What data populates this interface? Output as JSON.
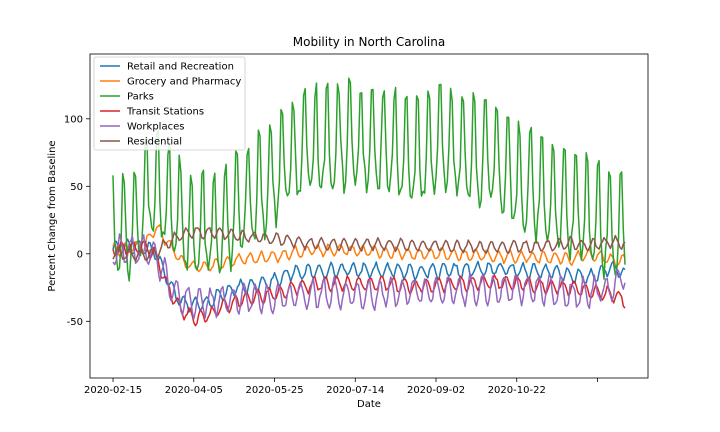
{
  "chart_data": {
    "type": "line",
    "title": "Mobility in North Carolina",
    "xlabel": "Date",
    "ylabel": "Percent Change from Baseline",
    "x_start": "2020-02-15",
    "x_end": "2020-12-28",
    "x_ticks": [
      "2020-02-15",
      "2020-04-05",
      "2020-05-25",
      "2020-07-14",
      "2020-09-02",
      "2020-10-22",
      ""
    ],
    "x_tick_dates": [
      "2020-02-15",
      "2020-04-05",
      "2020-05-25",
      "2020-07-14",
      "2020-09-02",
      "2020-10-22",
      "2020-12-11"
    ],
    "y_ticks": [
      -50,
      0,
      50,
      100
    ],
    "ylim": [
      -92,
      148
    ],
    "grid": false,
    "legend_position": "top-left",
    "series": [
      {
        "name": "Retail and Recreation",
        "color": "#1f77b4",
        "anchors": [
          [
            "2020-02-15",
            4
          ],
          [
            "2020-02-25",
            6
          ],
          [
            "2020-03-05",
            5
          ],
          [
            "2020-03-12",
            2
          ],
          [
            "2020-03-20",
            -20
          ],
          [
            "2020-03-28",
            -35
          ],
          [
            "2020-04-05",
            -38
          ],
          [
            "2020-04-13",
            -36
          ],
          [
            "2020-04-22",
            -30
          ],
          [
            "2020-05-01",
            -26
          ],
          [
            "2020-05-15",
            -22
          ],
          [
            "2020-05-25",
            -20
          ],
          [
            "2020-06-05",
            -14
          ],
          [
            "2020-06-20",
            -13
          ],
          [
            "2020-07-05",
            -12
          ],
          [
            "2020-07-14",
            -12
          ],
          [
            "2020-08-01",
            -12
          ],
          [
            "2020-08-20",
            -13
          ],
          [
            "2020-09-02",
            -13
          ],
          [
            "2020-09-20",
            -12
          ],
          [
            "2020-10-10",
            -11
          ],
          [
            "2020-10-22",
            -12
          ],
          [
            "2020-11-10",
            -13
          ],
          [
            "2020-11-25",
            -16
          ],
          [
            "2020-12-05",
            -18
          ],
          [
            "2020-12-20",
            -10
          ],
          [
            "2020-12-28",
            -15
          ]
        ],
        "amplitude": 5
      },
      {
        "name": "Grocery and Pharmacy",
        "color": "#ff7f0e",
        "anchors": [
          [
            "2020-02-15",
            3
          ],
          [
            "2020-03-05",
            5
          ],
          [
            "2020-03-13",
            20
          ],
          [
            "2020-03-20",
            8
          ],
          [
            "2020-03-28",
            -5
          ],
          [
            "2020-04-05",
            -10
          ],
          [
            "2020-04-20",
            -8
          ],
          [
            "2020-05-05",
            -4
          ],
          [
            "2020-05-25",
            -2
          ],
          [
            "2020-06-10",
            2
          ],
          [
            "2020-07-01",
            3
          ],
          [
            "2020-07-14",
            3
          ],
          [
            "2020-08-01",
            1
          ],
          [
            "2020-08-20",
            0
          ],
          [
            "2020-09-02",
            0
          ],
          [
            "2020-09-20",
            -1
          ],
          [
            "2020-10-10",
            -2
          ],
          [
            "2020-10-22",
            -2
          ],
          [
            "2020-11-15",
            -3
          ],
          [
            "2020-11-25",
            -4
          ],
          [
            "2020-12-05",
            0
          ],
          [
            "2020-12-20",
            -5
          ],
          [
            "2020-12-28",
            -5
          ]
        ],
        "amplitude": 4
      },
      {
        "name": "Parks",
        "color": "#2ca02c",
        "anchors": [
          [
            "2020-02-15",
            10
          ],
          [
            "2020-02-22",
            5
          ],
          [
            "2020-03-01",
            15
          ],
          [
            "2020-03-10",
            40
          ],
          [
            "2020-03-20",
            30
          ],
          [
            "2020-03-28",
            15
          ],
          [
            "2020-04-05",
            5
          ],
          [
            "2020-04-20",
            10
          ],
          [
            "2020-05-05",
            25
          ],
          [
            "2020-05-20",
            40
          ],
          [
            "2020-06-01",
            60
          ],
          [
            "2020-06-20",
            70
          ],
          [
            "2020-07-05",
            75
          ],
          [
            "2020-07-14",
            75
          ],
          [
            "2020-08-01",
            70
          ],
          [
            "2020-08-20",
            60
          ],
          [
            "2020-09-02",
            70
          ],
          [
            "2020-09-20",
            65
          ],
          [
            "2020-10-05",
            60
          ],
          [
            "2020-10-22",
            45
          ],
          [
            "2020-11-10",
            35
          ],
          [
            "2020-11-25",
            25
          ],
          [
            "2020-12-10",
            15
          ],
          [
            "2020-12-28",
            5
          ]
        ],
        "amplitude": 24
      },
      {
        "name": "Transit Stations",
        "color": "#d62728",
        "anchors": [
          [
            "2020-02-15",
            3
          ],
          [
            "2020-03-05",
            5
          ],
          [
            "2020-03-12",
            0
          ],
          [
            "2020-03-20",
            -25
          ],
          [
            "2020-03-28",
            -42
          ],
          [
            "2020-04-05",
            -48
          ],
          [
            "2020-04-15",
            -45
          ],
          [
            "2020-04-25",
            -38
          ],
          [
            "2020-05-10",
            -33
          ],
          [
            "2020-05-25",
            -30
          ],
          [
            "2020-06-10",
            -24
          ],
          [
            "2020-06-25",
            -22
          ],
          [
            "2020-07-14",
            -22
          ],
          [
            "2020-08-01",
            -22
          ],
          [
            "2020-08-20",
            -24
          ],
          [
            "2020-09-02",
            -23
          ],
          [
            "2020-09-20",
            -22
          ],
          [
            "2020-10-10",
            -21
          ],
          [
            "2020-10-22",
            -22
          ],
          [
            "2020-11-10",
            -24
          ],
          [
            "2020-11-25",
            -25
          ],
          [
            "2020-12-05",
            -28
          ],
          [
            "2020-12-20",
            -30
          ],
          [
            "2020-12-28",
            -35
          ]
        ],
        "amplitude": 5
      },
      {
        "name": "Workplaces",
        "color": "#9467bd",
        "anchors": [
          [
            "2020-02-15",
            2
          ],
          [
            "2020-03-05",
            3
          ],
          [
            "2020-03-12",
            0
          ],
          [
            "2020-03-20",
            -20
          ],
          [
            "2020-03-28",
            -33
          ],
          [
            "2020-04-05",
            -36
          ],
          [
            "2020-04-20",
            -35
          ],
          [
            "2020-05-05",
            -33
          ],
          [
            "2020-05-25",
            -32
          ],
          [
            "2020-06-10",
            -30
          ],
          [
            "2020-07-01",
            -29
          ],
          [
            "2020-07-14",
            -30
          ],
          [
            "2020-08-01",
            -29
          ],
          [
            "2020-08-20",
            -28
          ],
          [
            "2020-09-02",
            -28
          ],
          [
            "2020-09-20",
            -27
          ],
          [
            "2020-10-10",
            -26
          ],
          [
            "2020-10-22",
            -26
          ],
          [
            "2020-11-10",
            -27
          ],
          [
            "2020-11-25",
            -30
          ],
          [
            "2020-12-05",
            -28
          ],
          [
            "2020-12-20",
            -25
          ],
          [
            "2020-12-28",
            -15
          ]
        ],
        "amplitude": 10
      },
      {
        "name": "Residential",
        "color": "#8c564b",
        "anchors": [
          [
            "2020-02-15",
            0
          ],
          [
            "2020-03-05",
            -1
          ],
          [
            "2020-03-12",
            1
          ],
          [
            "2020-03-20",
            8
          ],
          [
            "2020-03-28",
            14
          ],
          [
            "2020-04-05",
            16
          ],
          [
            "2020-04-20",
            15
          ],
          [
            "2020-05-05",
            13
          ],
          [
            "2020-05-25",
            11
          ],
          [
            "2020-06-10",
            8
          ],
          [
            "2020-07-01",
            7
          ],
          [
            "2020-07-14",
            7
          ],
          [
            "2020-08-01",
            7
          ],
          [
            "2020-08-20",
            6
          ],
          [
            "2020-09-02",
            6
          ],
          [
            "2020-09-20",
            5
          ],
          [
            "2020-10-10",
            5
          ],
          [
            "2020-10-22",
            5
          ],
          [
            "2020-11-10",
            6
          ],
          [
            "2020-11-25",
            8
          ],
          [
            "2020-12-05",
            6
          ],
          [
            "2020-12-20",
            9
          ],
          [
            "2020-12-28",
            8
          ]
        ],
        "amplitude": 4
      }
    ]
  }
}
